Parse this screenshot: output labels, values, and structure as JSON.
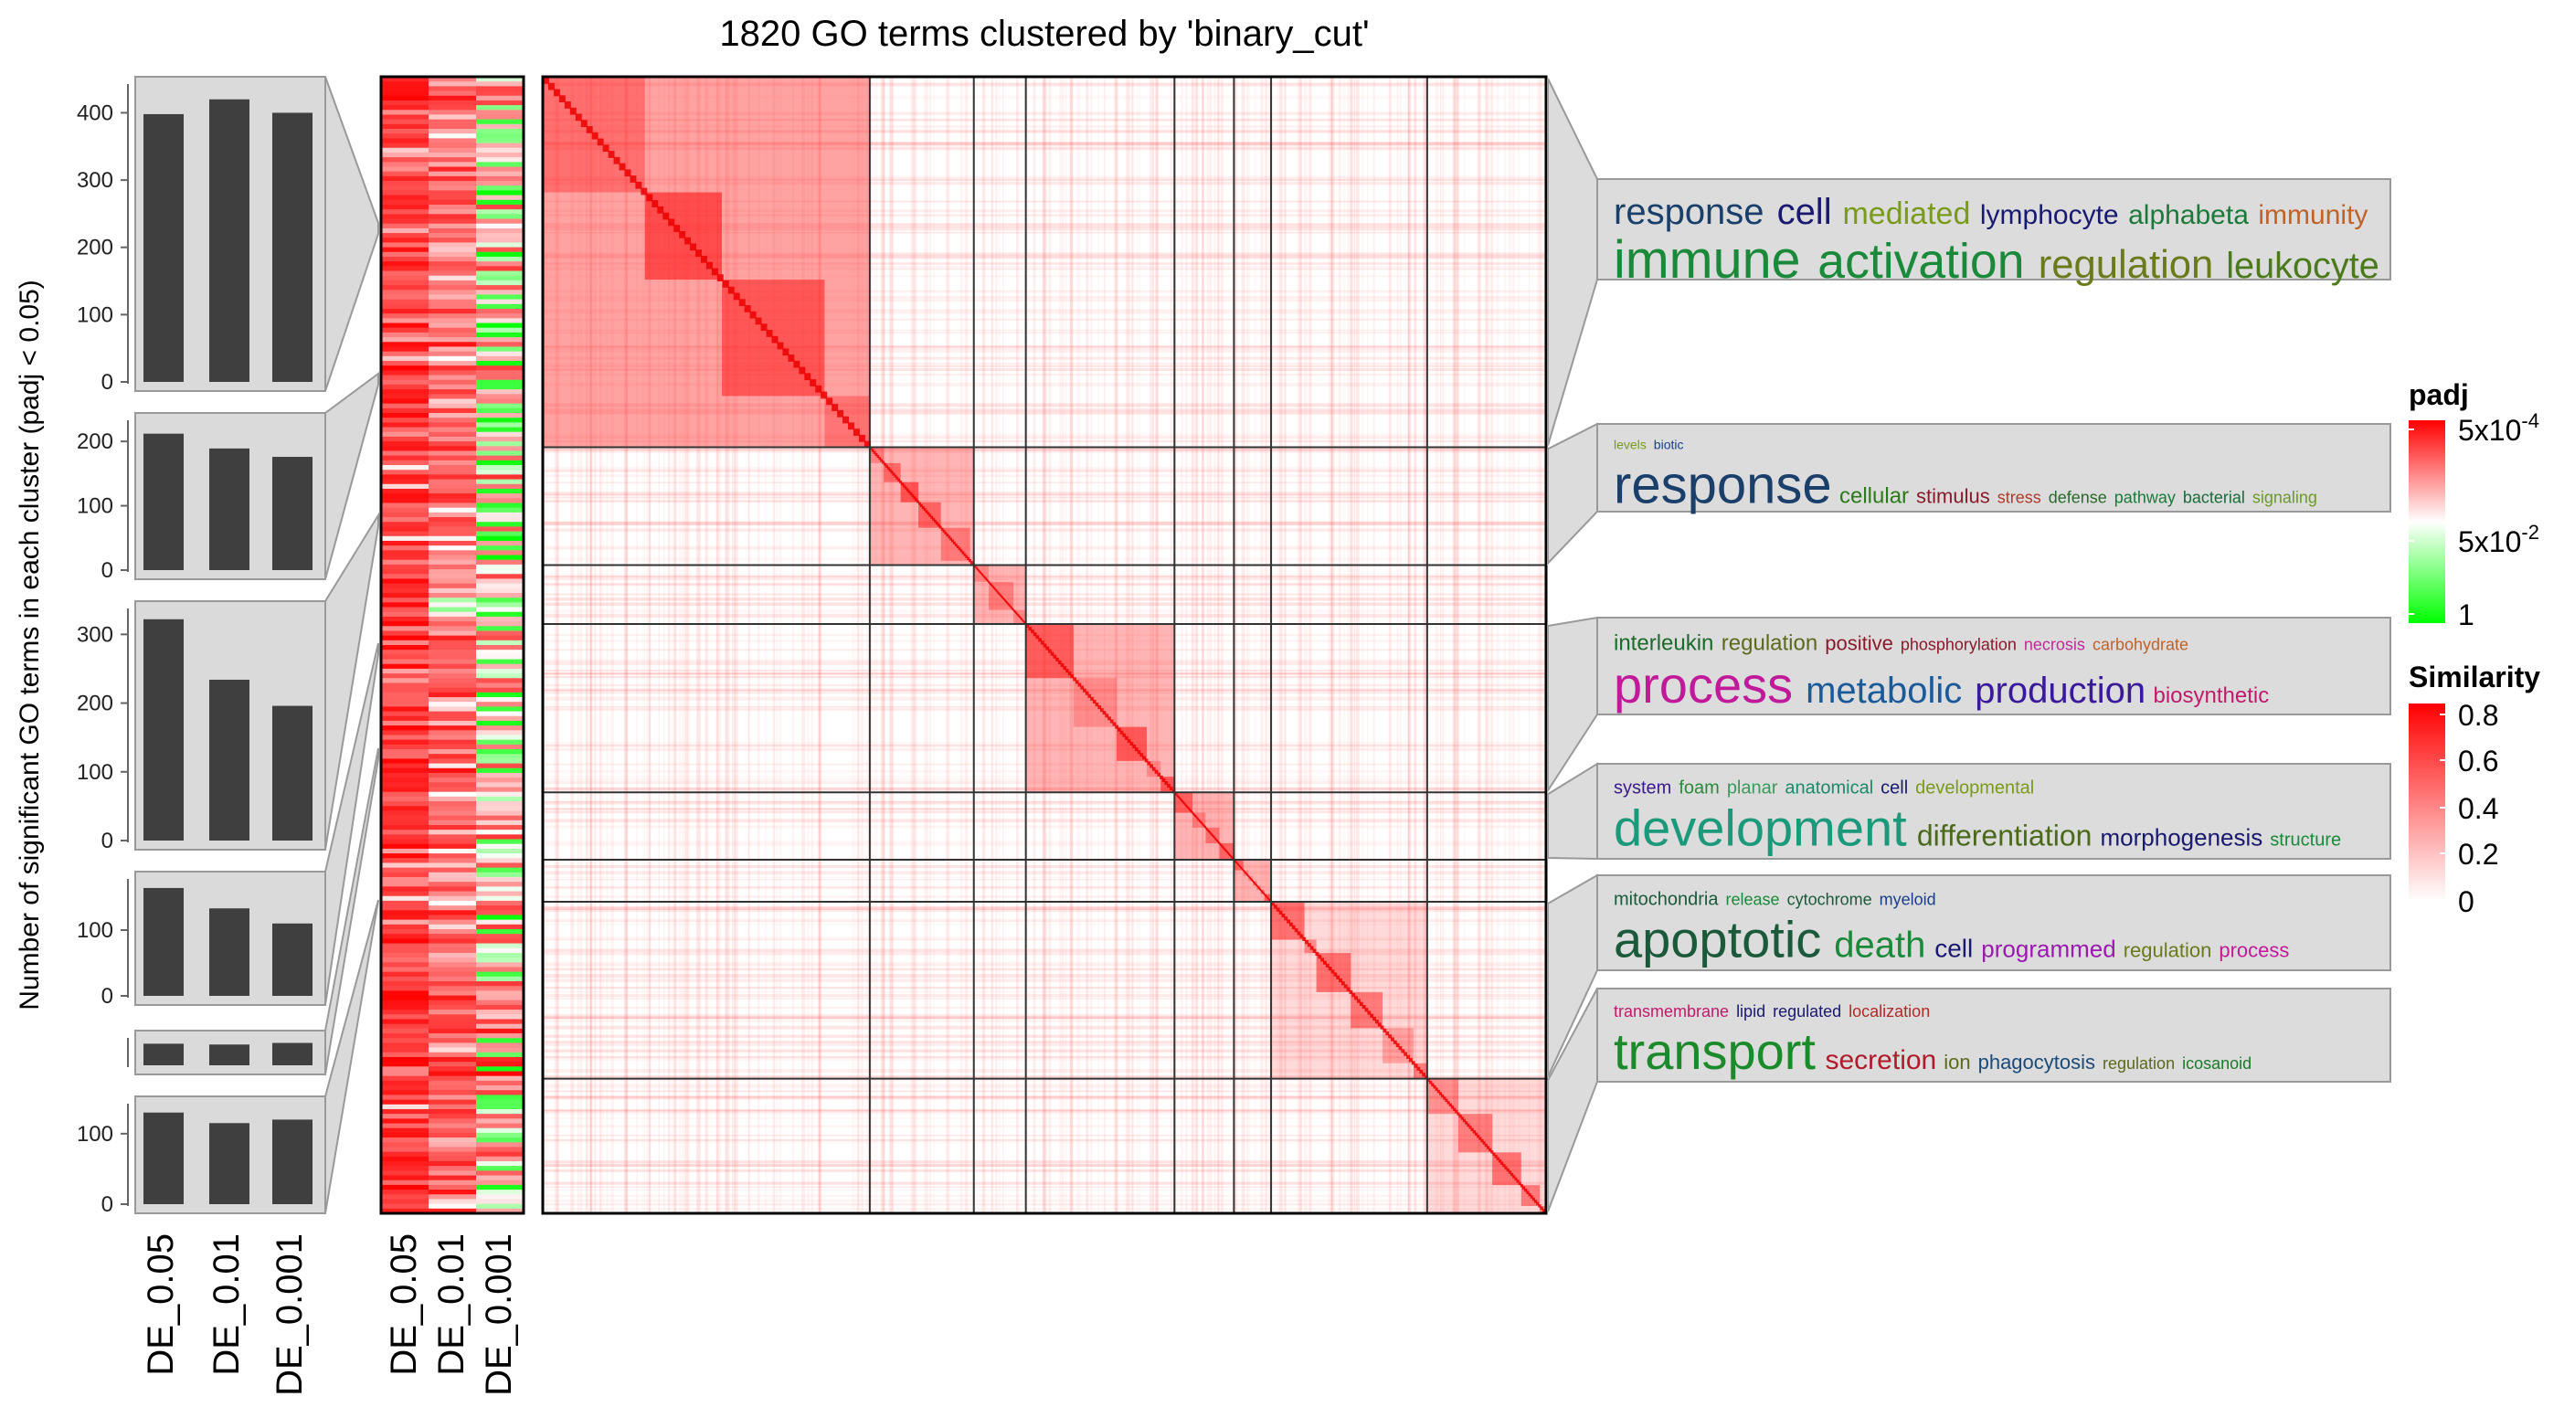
{
  "chart_data": {
    "type": "heatmap",
    "title": "1820 GO terms clustered by 'binary_cut'",
    "bar_panel": {
      "type": "bar",
      "ylabel": "Number of significant GO terms in each cluster (padj < 0.05)",
      "categories": [
        "DE_0.05",
        "DE_0.01",
        "DE_0.001"
      ],
      "clusters": [
        {
          "values": [
            398,
            420,
            400
          ],
          "ylim": [
            0,
            440
          ],
          "ticks": [
            0,
            100,
            200,
            300,
            400
          ]
        },
        {
          "values": [
            212,
            189,
            176
          ],
          "ylim": [
            0,
            230
          ],
          "ticks": [
            0,
            100,
            200
          ]
        },
        {
          "values": [
            322,
            234,
            196
          ],
          "ylim": [
            0,
            335
          ],
          "ticks": [
            0,
            100,
            200,
            300
          ]
        },
        {
          "values": [
            164,
            133,
            110
          ],
          "ylim": [
            0,
            175
          ],
          "ticks": [
            0,
            100
          ]
        },
        {
          "values": [
            27,
            26,
            28
          ],
          "ylim": [
            0,
            32
          ],
          "ticks": []
        },
        {
          "values": [
            130,
            115,
            120
          ],
          "ylim": [
            0,
            140
          ],
          "ticks": [
            0,
            100
          ]
        }
      ]
    },
    "padj_heatmap": {
      "columns": [
        "DE_0.05",
        "DE_0.01",
        "DE_0.001"
      ]
    },
    "similarity_heatmap": {
      "n_terms": 1820,
      "blocks": [
        {
          "size": 0.22
        },
        {
          "size": 0.07
        },
        {
          "size": 0.035
        },
        {
          "size": 0.1
        },
        {
          "size": 0.04
        },
        {
          "size": 0.025
        },
        {
          "size": 0.105
        },
        {
          "size": 0.08
        }
      ]
    },
    "legends": {
      "padj": {
        "title": "padj",
        "labels": [
          "5x10",
          "5x10",
          "1"
        ],
        "exponents": [
          "-4",
          "-2",
          ""
        ],
        "colors": [
          "#ff0000",
          "#ffffff",
          "#00ff00"
        ]
      },
      "similarity": {
        "title": "Similarity",
        "labels": [
          "0.8",
          "0.6",
          "0.4",
          "0.2",
          "0"
        ],
        "colors": [
          "#ffffff",
          "#ff0000"
        ]
      }
    },
    "word_clouds": [
      {
        "lines": [
          [
            [
              "response",
              40,
              "#1a3f6b"
            ],
            [
              "cell",
              40,
              "#191970"
            ],
            [
              "mediated",
              34,
              "#7a9a1a"
            ],
            [
              "lymphocyte",
              30,
              "#191970"
            ],
            [
              "alphabeta",
              30,
              "#1a7a3a"
            ],
            [
              "immunity",
              30,
              "#c0622a"
            ]
          ],
          [
            [
              "immune",
              58,
              "#1a8a3a"
            ],
            [
              "activation",
              54,
              "#1a8a3a"
            ],
            [
              "regulation",
              44,
              "#6b7a1a"
            ],
            [
              "leukocyte",
              40,
              "#4a7a1a"
            ]
          ]
        ]
      },
      {
        "lines": [
          [
            [
              "levels",
              14,
              "#7a9a1a"
            ],
            [
              "biotic",
              14,
              "#1a3f8a"
            ]
          ],
          [
            [
              "response",
              58,
              "#1a3f6b"
            ],
            [
              "cellular",
              24,
              "#2a7a1a"
            ],
            [
              "stimulus",
              22,
              "#8a1a2a"
            ],
            [
              "stress",
              18,
              "#b03a2a"
            ],
            [
              "defense",
              18,
              "#2a6a2a"
            ],
            [
              "pathway",
              18,
              "#1a7a3a"
            ],
            [
              "bacterial",
              18,
              "#1a6a3a"
            ],
            [
              "signaling",
              18,
              "#6a9a2a"
            ]
          ]
        ]
      },
      {
        "lines": [
          [
            [
              "interleukin",
              24,
              "#1a6a2a"
            ],
            [
              "regulation",
              24,
              "#5a6a1a"
            ],
            [
              "positive",
              22,
              "#8a1a2a"
            ],
            [
              "phosphorylation",
              18,
              "#8a1a2a"
            ],
            [
              "necrosis",
              18,
              "#c02a9a"
            ],
            [
              "carbohydrate",
              18,
              "#c0622a"
            ]
          ],
          [
            [
              "process",
              56,
              "#c01a9a"
            ],
            [
              "metabolic",
              40,
              "#1a5a9a"
            ],
            [
              "production",
              40,
              "#3a1a9a"
            ],
            [
              "biosynthetic",
              24,
              "#c01a6a"
            ]
          ]
        ]
      },
      {
        "lines": [
          [
            [
              "system",
              20,
              "#3a1a8a"
            ],
            [
              "foam",
              20,
              "#2a8a3a"
            ],
            [
              "planar",
              20,
              "#3a9a5a"
            ],
            [
              "anatomical",
              20,
              "#1a8a6a"
            ],
            [
              "cell",
              20,
              "#191970"
            ],
            [
              "developmental",
              20,
              "#7a9a1a"
            ]
          ],
          [
            [
              "development",
              56,
              "#1a9a7a"
            ],
            [
              "differentiation",
              32,
              "#4a6a1a"
            ],
            [
              "morphogenesis",
              26,
              "#191970"
            ],
            [
              "structure",
              20,
              "#1a8a3a"
            ]
          ]
        ]
      },
      {
        "lines": [
          [
            [
              "mitochondria",
              20,
              "#1a5a3a"
            ],
            [
              "release",
              18,
              "#1a8a3a"
            ],
            [
              "cytochrome",
              18,
              "#1a5a3a"
            ],
            [
              "myeloid",
              18,
              "#1a3f8a"
            ]
          ],
          [
            [
              "apoptotic",
              56,
              "#1a5a3a"
            ],
            [
              "death",
              40,
              "#1a8a3a"
            ],
            [
              "cell",
              28,
              "#191970"
            ],
            [
              "programmed",
              26,
              "#9a1ab0"
            ],
            [
              "regulation",
              22,
              "#6a7a1a"
            ],
            [
              "process",
              22,
              "#c01a9a"
            ]
          ]
        ]
      },
      {
        "lines": [
          [
            [
              "transmembrane",
              18,
              "#c01a6a"
            ],
            [
              "lipid",
              18,
              "#191970"
            ],
            [
              "regulated",
              18,
              "#191970"
            ],
            [
              "localization",
              18,
              "#b02a2a"
            ]
          ],
          [
            [
              "transport",
              56,
              "#1a8a2a"
            ],
            [
              "secretion",
              30,
              "#b01a2a"
            ],
            [
              "ion",
              22,
              "#5a6a1a"
            ],
            [
              "phagocytosis",
              22,
              "#1a4a7a"
            ],
            [
              "regulation",
              18,
              "#5a6a1a"
            ],
            [
              "icosanoid",
              18,
              "#1a7a2a"
            ]
          ]
        ]
      }
    ]
  }
}
